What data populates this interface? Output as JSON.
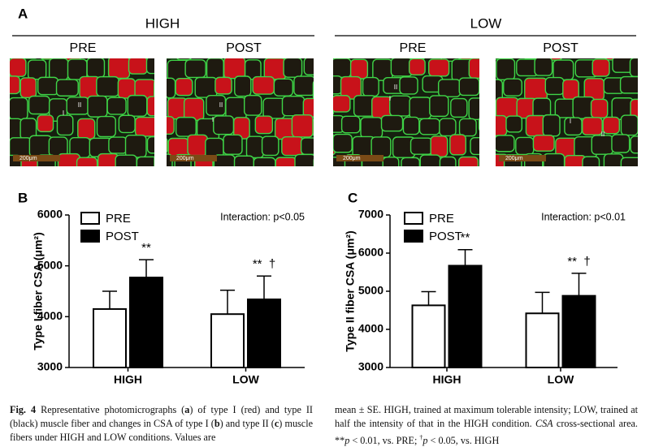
{
  "panel_a": {
    "label": "A",
    "groups": [
      {
        "title": "HIGH",
        "images": [
          {
            "title": "PRE",
            "fiber_labels": [
              "I",
              "II"
            ],
            "scale": "200μm"
          },
          {
            "title": "POST",
            "fiber_labels": [
              "II",
              "I"
            ],
            "scale": "200μm"
          }
        ]
      },
      {
        "title": "LOW",
        "images": [
          {
            "title": "PRE",
            "fiber_labels": [
              "II",
              "I"
            ],
            "scale": "200μm"
          },
          {
            "title": "POST",
            "fiber_labels": [
              "I",
              "II"
            ],
            "scale": "200μm"
          }
        ]
      }
    ]
  },
  "chart_data": [
    {
      "type": "bar",
      "panel": "B",
      "ylabel": "Type I fiber CSA (μm²)",
      "note": "Interaction: p<0.05",
      "categories": [
        "HIGH",
        "LOW"
      ],
      "series": [
        {
          "name": "PRE",
          "color": "#ffffff",
          "values": [
            4150,
            4050
          ],
          "errors": [
            350,
            470
          ]
        },
        {
          "name": "POST",
          "color": "#000000",
          "values": [
            4770,
            4340
          ],
          "errors": [
            350,
            460
          ]
        }
      ],
      "significance": [
        "**",
        "**  †"
      ],
      "ylim": [
        3000,
        6000
      ],
      "yticks": [
        3000,
        4000,
        5000,
        6000
      ]
    },
    {
      "type": "bar",
      "panel": "C",
      "ylabel": "Type II fiber CSA (μm²)",
      "note": "Interaction: p<0.01",
      "categories": [
        "HIGH",
        "LOW"
      ],
      "series": [
        {
          "name": "PRE",
          "color": "#ffffff",
          "values": [
            4630,
            4420
          ],
          "errors": [
            360,
            550
          ]
        },
        {
          "name": "POST",
          "color": "#000000",
          "values": [
            5670,
            4880
          ],
          "errors": [
            420,
            590
          ]
        }
      ],
      "significance": [
        "**",
        "**  †"
      ],
      "ylim": [
        3000,
        7000
      ],
      "yticks": [
        3000,
        4000,
        5000,
        6000,
        7000
      ]
    }
  ],
  "caption": {
    "left": [
      "Fig. 4",
      " Representative photomicrographs (",
      "a",
      ") of type I (red) and type II (black) muscle fiber and changes in CSA of type I (",
      "b",
      ") and type II (",
      "c",
      ") muscle fibers under HIGH and LOW conditions. Values are"
    ],
    "right": [
      "mean ± SE. HIGH, trained at maximum tolerable intensity; LOW, trained at half the intensity of that in the HIGH condition. ",
      "CSA",
      " cross-sectional area. **",
      "p",
      " < 0.01, vs. PRE; ",
      "†",
      "p",
      " < 0.05, vs. HIGH"
    ]
  }
}
